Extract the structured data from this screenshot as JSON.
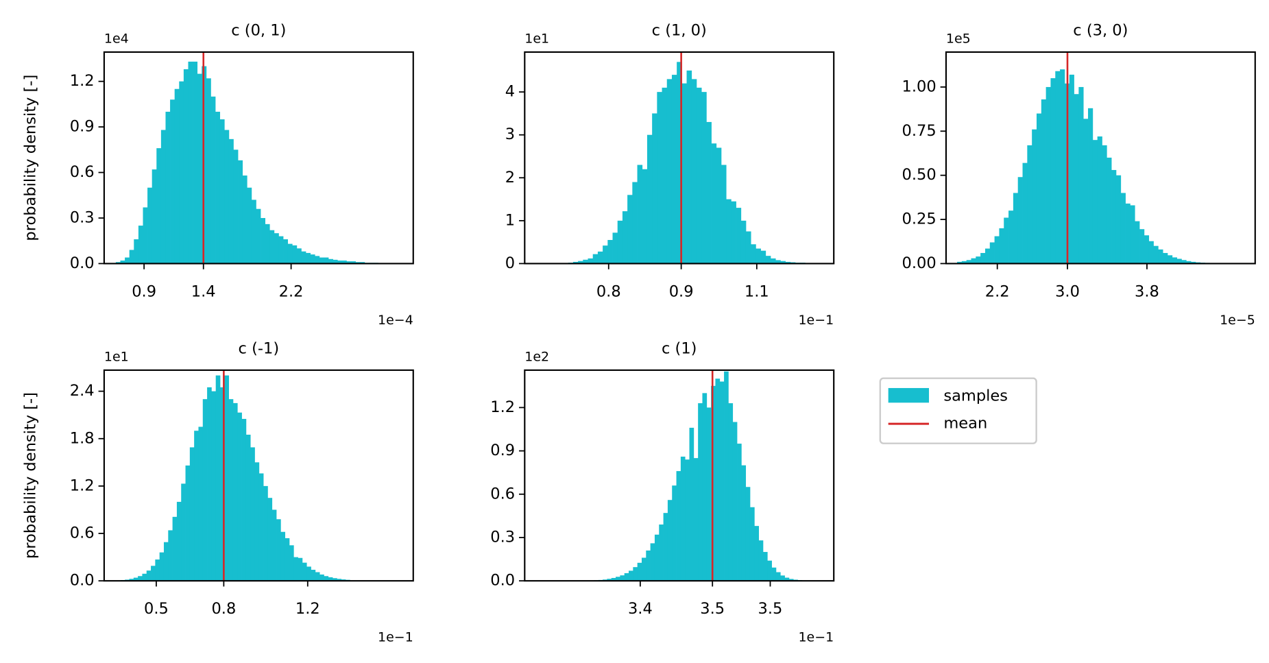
{
  "legend": [
    {
      "name": "samples",
      "color": "#17becf"
    },
    {
      "name": "mean",
      "color": "#d62728"
    }
  ],
  "chart_data": [
    {
      "type": "histogram",
      "title": "c (0, 1)",
      "ylabel": "probability density [-]",
      "x_offset": "1e−4",
      "y_offset": "1e4",
      "bins": [
        0.65,
        0.69,
        0.73,
        0.77,
        0.81,
        0.85,
        0.89,
        0.93,
        0.97,
        1.01,
        1.05,
        1.09,
        1.13,
        1.17,
        1.21,
        1.25,
        1.29,
        1.33,
        1.37,
        1.41,
        1.45,
        1.49,
        1.53,
        1.57,
        1.61,
        1.65,
        1.69,
        1.73,
        1.77,
        1.81,
        1.85,
        1.89,
        1.93,
        1.97,
        2.01,
        2.05,
        2.09,
        2.13,
        2.17,
        2.21,
        2.25,
        2.29,
        2.33,
        2.37,
        2.41,
        2.45,
        2.49,
        2.53,
        2.57,
        2.61,
        2.65,
        2.69,
        2.73,
        2.77,
        2.81,
        2.85,
        2.89,
        2.93,
        2.97
      ],
      "counts": [
        0.01,
        0.02,
        0.04,
        0.09,
        0.16,
        0.25,
        0.37,
        0.5,
        0.62,
        0.76,
        0.88,
        1.0,
        1.08,
        1.15,
        1.2,
        1.28,
        1.33,
        1.33,
        1.25,
        1.3,
        1.22,
        1.1,
        1.0,
        0.95,
        0.88,
        0.82,
        0.75,
        0.68,
        0.58,
        0.5,
        0.42,
        0.36,
        0.3,
        0.26,
        0.22,
        0.2,
        0.18,
        0.16,
        0.13,
        0.12,
        0.1,
        0.08,
        0.07,
        0.06,
        0.05,
        0.04,
        0.04,
        0.03,
        0.025,
        0.02,
        0.02,
        0.015,
        0.015,
        0.01,
        0.01,
        0.005,
        0.005,
        0.005
      ],
      "mean": 1.425,
      "xlim": [
        0.547,
        3.28
      ],
      "xticks": [
        0.9,
        {
          "value": 1.425,
          "label": "1.4"
        },
        2.2
      ],
      "ylim": [
        0,
        1.393
      ],
      "yticks": [
        {
          "value": 0,
          "label": "0.0"
        },
        0.3,
        0.6,
        0.9,
        1.2
      ]
    },
    {
      "type": "histogram",
      "title": "c (1, 0)",
      "x_offset": "1e−1",
      "y_offset": "1e1",
      "bins": [
        0.668,
        0.678,
        0.688,
        0.698,
        0.708,
        0.718,
        0.728,
        0.738,
        0.748,
        0.758,
        0.768,
        0.778,
        0.788,
        0.798,
        0.808,
        0.818,
        0.828,
        0.838,
        0.848,
        0.858,
        0.868,
        0.878,
        0.888,
        0.898,
        0.908,
        0.918,
        0.928,
        0.938,
        0.948,
        0.958,
        0.968,
        0.978,
        0.988,
        0.998,
        1.008,
        1.018,
        1.028,
        1.038,
        1.048,
        1.058,
        1.068,
        1.078,
        1.088,
        1.098,
        1.108,
        1.118,
        1.128,
        1.138,
        1.148,
        1.158,
        1.168,
        1.178,
        1.188,
        1.198,
        1.208,
        1.218,
        1.228
      ],
      "counts": [
        0.002,
        0.003,
        0.005,
        0.008,
        0.012,
        0.02,
        0.04,
        0.06,
        0.09,
        0.12,
        0.22,
        0.28,
        0.42,
        0.55,
        0.72,
        1.0,
        1.22,
        1.6,
        1.9,
        2.3,
        2.2,
        3.0,
        3.5,
        4.0,
        4.1,
        4.3,
        4.4,
        4.7,
        4.2,
        4.5,
        4.3,
        4.1,
        4.0,
        3.3,
        2.8,
        2.7,
        2.3,
        1.5,
        1.45,
        1.3,
        1.0,
        0.75,
        0.45,
        0.35,
        0.3,
        0.18,
        0.12,
        0.08,
        0.06,
        0.04,
        0.03,
        0.02,
        0.02,
        0.01,
        0.005,
        0.005
      ],
      "mean": 0.947,
      "xlim": [
        0.63,
        1.256
      ],
      "xticks": [
        0.8,
        {
          "value": 0.947,
          "label": "0.9"
        },
        1.1
      ],
      "ylim": [
        0,
        4.93
      ],
      "yticks": [
        0,
        1,
        2,
        3,
        4
      ]
    },
    {
      "type": "histogram",
      "title": "c (3, 0)",
      "x_offset": "1e−5",
      "y_offset": "1e5",
      "bins": [
        1.77,
        1.82,
        1.87,
        1.92,
        1.97,
        2.02,
        2.07,
        2.12,
        2.17,
        2.22,
        2.27,
        2.32,
        2.37,
        2.42,
        2.47,
        2.52,
        2.57,
        2.62,
        2.67,
        2.72,
        2.77,
        2.82,
        2.87,
        2.92,
        2.97,
        3.02,
        3.07,
        3.12,
        3.17,
        3.22,
        3.27,
        3.32,
        3.37,
        3.42,
        3.47,
        3.52,
        3.57,
        3.62,
        3.67,
        3.72,
        3.77,
        3.82,
        3.87,
        3.92,
        3.97,
        4.02,
        4.07,
        4.12,
        4.17,
        4.22,
        4.27,
        4.32,
        4.37,
        4.42,
        4.47,
        4.52
      ],
      "counts": [
        0.01,
        0.014,
        0.02,
        0.03,
        0.04,
        0.06,
        0.085,
        0.12,
        0.155,
        0.2,
        0.26,
        0.3,
        0.4,
        0.49,
        0.57,
        0.67,
        0.76,
        0.85,
        0.93,
        1.0,
        1.05,
        1.09,
        1.1,
        1.02,
        1.07,
        0.96,
        1.0,
        0.82,
        0.88,
        0.7,
        0.72,
        0.67,
        0.6,
        0.53,
        0.5,
        0.4,
        0.34,
        0.33,
        0.24,
        0.195,
        0.16,
        0.127,
        0.1,
        0.08,
        0.06,
        0.047,
        0.035,
        0.027,
        0.02,
        0.014,
        0.01,
        0.007,
        0.005,
        0.004,
        0.003
      ],
      "mean": 2.95,
      "xlim": [
        1.652,
        4.957
      ],
      "xticks": [
        2.2,
        {
          "value": 2.95,
          "label": "3.0"
        },
        3.8
      ],
      "ylim": [
        0,
        1.198
      ],
      "yticks": [
        {
          "value": 0,
          "label": "0.00"
        },
        0.25,
        {
          "value": 0.5,
          "label": "0.50"
        },
        0.75,
        {
          "value": 1,
          "label": "1.00"
        }
      ]
    },
    {
      "type": "histogram",
      "title": "c (-1)",
      "ylabel": "probability density [-]",
      "x_offset": "1e−1",
      "y_offset": "1e1",
      "bins": [
        0.295,
        0.315,
        0.335,
        0.355,
        0.375,
        0.395,
        0.415,
        0.435,
        0.455,
        0.475,
        0.495,
        0.515,
        0.535,
        0.555,
        0.575,
        0.595,
        0.615,
        0.635,
        0.655,
        0.675,
        0.695,
        0.715,
        0.735,
        0.755,
        0.775,
        0.795,
        0.815,
        0.835,
        0.855,
        0.875,
        0.895,
        0.915,
        0.935,
        0.955,
        0.975,
        0.995,
        1.015,
        1.035,
        1.055,
        1.075,
        1.095,
        1.115,
        1.135,
        1.155,
        1.175,
        1.195,
        1.215,
        1.235,
        1.255,
        1.275,
        1.295,
        1.315,
        1.335,
        1.355,
        1.375,
        1.395
      ],
      "counts": [
        0.003,
        0.005,
        0.01,
        0.015,
        0.025,
        0.04,
        0.06,
        0.09,
        0.13,
        0.19,
        0.27,
        0.36,
        0.49,
        0.64,
        0.81,
        1.0,
        1.23,
        1.46,
        1.69,
        1.9,
        1.95,
        2.3,
        2.45,
        2.4,
        2.6,
        2.45,
        2.6,
        2.3,
        2.25,
        2.13,
        2.05,
        1.85,
        1.69,
        1.5,
        1.36,
        1.2,
        1.05,
        0.9,
        0.78,
        0.62,
        0.54,
        0.45,
        0.3,
        0.29,
        0.23,
        0.18,
        0.14,
        0.11,
        0.08,
        0.06,
        0.045,
        0.034,
        0.025,
        0.018,
        0.013
      ],
      "mean": 0.812,
      "xlim": [
        0.259,
        1.688
      ],
      "xticks": [
        0.5,
        {
          "value": 0.812,
          "label": "0.8"
        },
        1.2
      ],
      "ylim": [
        0,
        2.667
      ],
      "yticks": [
        {
          "value": 0,
          "label": "0.0"
        },
        0.6,
        1.2,
        1.8,
        2.4
      ]
    },
    {
      "type": "histogram",
      "title": "c (1)",
      "x_offset": "1e−1",
      "y_offset": "1e2",
      "bins": [
        3.382,
        3.385,
        3.388,
        3.391,
        3.394,
        3.397,
        3.4,
        3.403,
        3.406,
        3.409,
        3.412,
        3.415,
        3.418,
        3.421,
        3.424,
        3.427,
        3.43,
        3.433,
        3.436,
        3.439,
        3.442,
        3.445,
        3.448,
        3.451,
        3.454,
        3.457,
        3.46,
        3.463,
        3.466,
        3.469,
        3.472,
        3.475,
        3.478,
        3.481,
        3.484,
        3.487,
        3.49,
        3.493,
        3.496,
        3.499,
        3.502,
        3.505,
        3.508,
        3.511,
        3.514,
        3.517,
        3.52,
        3.523,
        3.526,
        3.529,
        3.532,
        3.535,
        3.538,
        3.541,
        3.544
      ],
      "counts": [
        0.002,
        0.003,
        0.004,
        0.006,
        0.009,
        0.014,
        0.02,
        0.028,
        0.038,
        0.053,
        0.07,
        0.095,
        0.125,
        0.16,
        0.21,
        0.26,
        0.32,
        0.39,
        0.47,
        0.56,
        0.66,
        0.76,
        0.86,
        0.84,
        1.06,
        0.85,
        1.23,
        1.3,
        1.2,
        1.35,
        1.4,
        1.38,
        1.45,
        1.23,
        1.1,
        0.95,
        0.8,
        0.65,
        0.51,
        0.38,
        0.28,
        0.2,
        0.14,
        0.092,
        0.06,
        0.037,
        0.022,
        0.013,
        0.008,
        0.005,
        0.003,
        0.002,
        0.001,
        0.001
      ],
      "mean": 3.47,
      "xlim": [
        3.34,
        3.554
      ],
      "xticks": [
        {
          "value": 3.42,
          "label": "3.4"
        },
        {
          "value": 3.47,
          "label": "3.5"
        },
        {
          "value": 3.51,
          "label": "3.5"
        }
      ],
      "ylim": [
        0,
        1.459
      ],
      "yticks": [
        {
          "value": 0,
          "label": "0.0"
        },
        0.3,
        0.6,
        0.9,
        1.2
      ]
    }
  ]
}
